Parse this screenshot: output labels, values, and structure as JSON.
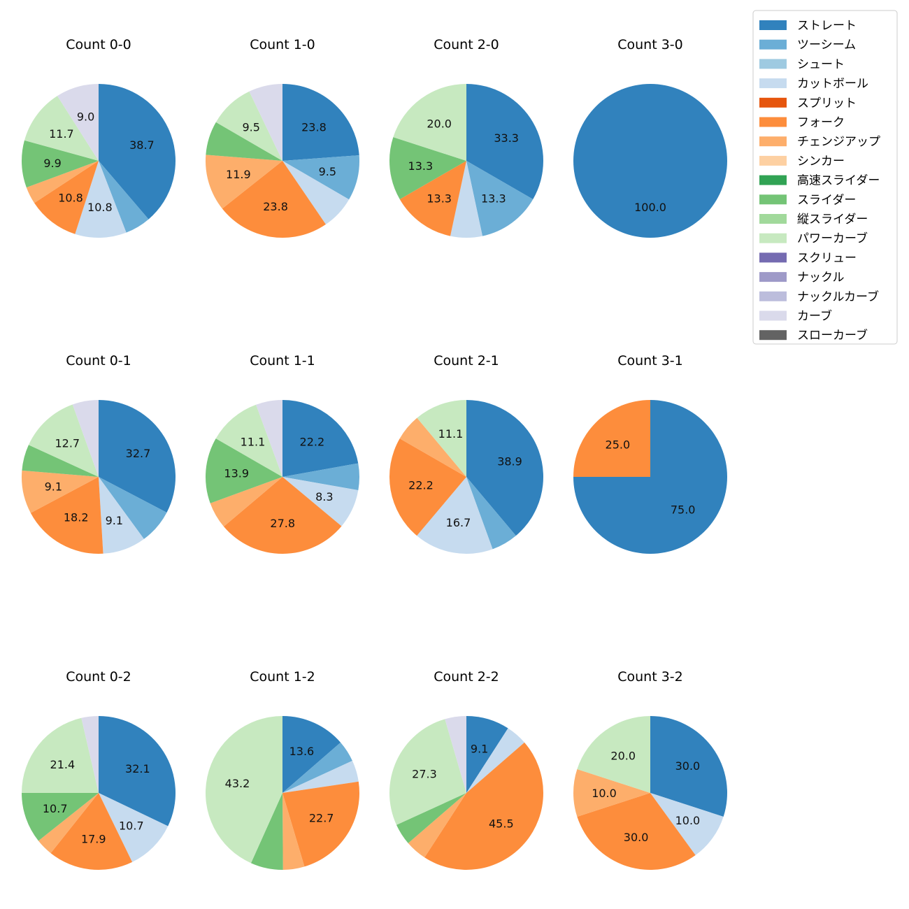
{
  "chart_data": {
    "type": "pie",
    "categories": [
      "ストレート",
      "ツーシーム",
      "シュート",
      "カットボール",
      "スプリット",
      "フォーク",
      "チェンジアップ",
      "シンカー",
      "高速スライダー",
      "スライダー",
      "縦スライダー",
      "パワーカーブ",
      "スクリュー",
      "ナックル",
      "ナックルカーブ",
      "カーブ",
      "スローカーブ"
    ],
    "colors": [
      "#3182bd",
      "#6baed6",
      "#9ecae1",
      "#c6dbef",
      "#e6550d",
      "#fd8d3c",
      "#fdae6b",
      "#fdd0a2",
      "#31a354",
      "#74c476",
      "#a1d99b",
      "#c7e9c0",
      "#756bb1",
      "#9e9ac8",
      "#bcbddc",
      "#dadaeb",
      "#636363"
    ],
    "legend_position": "top-right",
    "charts": [
      {
        "title": "Count 0-0",
        "values": [
          38.7,
          5.4,
          0,
          10.8,
          0,
          10.8,
          3.6,
          0,
          0,
          9.9,
          0,
          11.7,
          0,
          0,
          0,
          9.0,
          0
        ],
        "labels": [
          "38.7",
          "",
          "",
          "10.8",
          "",
          "10.8",
          "",
          "",
          "",
          "9.9",
          "",
          "11.7",
          "",
          "",
          "",
          "9.0",
          ""
        ]
      },
      {
        "title": "Count 1-0",
        "values": [
          23.8,
          9.5,
          0,
          7.1,
          0,
          23.8,
          11.9,
          0,
          0,
          7.1,
          0,
          9.5,
          0,
          0,
          0,
          7.1,
          0
        ],
        "labels": [
          "23.8",
          "9.5",
          "",
          "",
          "",
          "23.8",
          "11.9",
          "",
          "",
          "",
          "",
          "9.5",
          "",
          "",
          "",
          "",
          ""
        ]
      },
      {
        "title": "Count 2-0",
        "values": [
          33.3,
          13.3,
          0,
          6.7,
          0,
          13.3,
          0,
          0,
          0,
          13.3,
          0,
          20.0,
          0,
          0,
          0,
          0,
          0
        ],
        "labels": [
          "33.3",
          "13.3",
          "",
          "",
          "",
          "13.3",
          "",
          "",
          "",
          "13.3",
          "",
          "20.0",
          "",
          "",
          "",
          "",
          ""
        ]
      },
      {
        "title": "Count 3-0",
        "values": [
          100,
          0,
          0,
          0,
          0,
          0,
          0,
          0,
          0,
          0,
          0,
          0,
          0,
          0,
          0,
          0,
          0
        ],
        "labels": [
          "100.0",
          "",
          "",
          "",
          "",
          "",
          "",
          "",
          "",
          "",
          "",
          "",
          "",
          "",
          "",
          "",
          ""
        ]
      },
      {
        "title": "Count 0-1",
        "values": [
          32.7,
          7.3,
          0,
          9.1,
          0,
          18.2,
          9.1,
          0,
          0,
          5.5,
          0,
          12.7,
          0,
          0,
          0,
          5.5,
          0
        ],
        "labels": [
          "32.7",
          "",
          "",
          "9.1",
          "",
          "18.2",
          "9.1",
          "",
          "",
          "",
          "",
          "12.7",
          "",
          "",
          "",
          "",
          ""
        ]
      },
      {
        "title": "Count 1-1",
        "values": [
          22.2,
          5.6,
          0,
          8.3,
          0,
          27.8,
          5.6,
          0,
          0,
          13.9,
          0,
          11.1,
          0,
          0,
          0,
          5.6,
          0
        ],
        "labels": [
          "22.2",
          "",
          "",
          "8.3",
          "",
          "27.8",
          "",
          "",
          "",
          "13.9",
          "",
          "11.1",
          "",
          "",
          "",
          "",
          ""
        ]
      },
      {
        "title": "Count 2-1",
        "values": [
          38.9,
          5.6,
          0,
          16.7,
          0,
          22.2,
          5.6,
          0,
          0,
          0,
          0,
          11.1,
          0,
          0,
          0,
          0,
          0
        ],
        "labels": [
          "38.9",
          "",
          "",
          "16.7",
          "",
          "22.2",
          "",
          "",
          "",
          "",
          "",
          "11.1",
          "",
          "",
          "",
          "",
          ""
        ]
      },
      {
        "title": "Count 3-1",
        "values": [
          75.0,
          0,
          0,
          0,
          0,
          25.0,
          0,
          0,
          0,
          0,
          0,
          0,
          0,
          0,
          0,
          0,
          0
        ],
        "labels": [
          "75.0",
          "",
          "",
          "",
          "",
          "25.0",
          "",
          "",
          "",
          "",
          "",
          "",
          "",
          "",
          "",
          "",
          ""
        ]
      },
      {
        "title": "Count 0-2",
        "values": [
          32.1,
          0,
          0,
          10.7,
          0,
          17.9,
          3.6,
          0,
          0,
          10.7,
          0,
          21.4,
          0,
          0,
          0,
          3.6,
          0
        ],
        "labels": [
          "32.1",
          "",
          "",
          "10.7",
          "",
          "17.9",
          "",
          "",
          "",
          "10.7",
          "",
          "21.4",
          "",
          "",
          "",
          "",
          ""
        ]
      },
      {
        "title": "Count 1-2",
        "values": [
          13.6,
          4.5,
          0,
          4.5,
          0,
          22.7,
          4.5,
          0,
          0,
          6.8,
          0,
          43.2,
          0,
          0,
          0,
          0,
          0
        ],
        "labels": [
          "13.6",
          "",
          "",
          "",
          "",
          "22.7",
          "",
          "",
          "",
          "",
          "",
          "43.2",
          "",
          "",
          "",
          "",
          ""
        ]
      },
      {
        "title": "Count 2-2",
        "values": [
          9.1,
          0,
          0,
          4.5,
          0,
          45.5,
          4.5,
          0,
          0,
          4.5,
          0,
          27.3,
          0,
          0,
          0,
          4.5,
          0
        ],
        "labels": [
          "9.1",
          "",
          "",
          "",
          "",
          "45.5",
          "",
          "",
          "",
          "",
          "",
          "27.3",
          "",
          "",
          "",
          "",
          ""
        ]
      },
      {
        "title": "Count 3-2",
        "values": [
          30.0,
          0,
          0,
          10.0,
          0,
          30.0,
          10.0,
          0,
          0,
          0,
          0,
          20.0,
          0,
          0,
          0,
          0,
          0
        ],
        "labels": [
          "30.0",
          "",
          "",
          "10.0",
          "",
          "30.0",
          "10.0",
          "",
          "",
          "",
          "",
          "20.0",
          "",
          "",
          "",
          "",
          ""
        ]
      }
    ]
  }
}
